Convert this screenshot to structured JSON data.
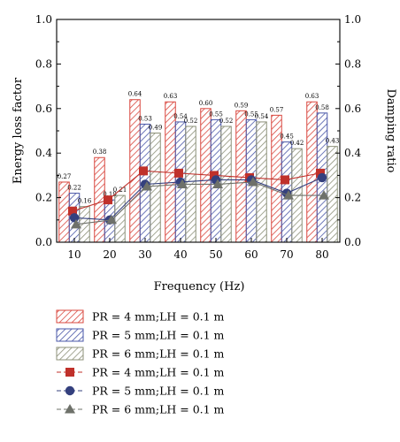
{
  "chart_data": {
    "type": "bar",
    "x": [
      10,
      20,
      30,
      40,
      50,
      60,
      70,
      80
    ],
    "xlabel": "Frequency (Hz)",
    "ylabel": "Energy loss factor",
    "y2label": "Damping ratio",
    "ylim": [
      0.0,
      1.0
    ],
    "y2lim": [
      0.0,
      1.0
    ],
    "yticks": [
      "0.0",
      "0.2",
      "0.4",
      "0.6",
      "0.8",
      "1.0"
    ],
    "y2ticks": [
      "0.0",
      "0.2",
      "0.4",
      "0.6",
      "0.8",
      "1.0"
    ],
    "legend_placement": "below",
    "grid": false,
    "bar_series": [
      {
        "name": "PR = 4 mm;LH = 0.1 m",
        "color": "#d9473e",
        "values": [
          0.27,
          0.38,
          0.64,
          0.63,
          0.6,
          0.59,
          0.57,
          0.63
        ],
        "labels": [
          "0.27",
          "0.38",
          "0.64",
          "0.63",
          "0.60",
          "0.59",
          "0.57",
          "0.63"
        ]
      },
      {
        "name": "PR = 5 mm;LH = 0.1 m",
        "color": "#4a57a8",
        "values": [
          0.22,
          0.19,
          0.53,
          0.54,
          0.55,
          0.55,
          0.45,
          0.58
        ],
        "labels": [
          "0.22",
          "0.19",
          "0.53",
          "0.54",
          "0.55",
          "0.55",
          "0.45",
          "0.58"
        ]
      },
      {
        "name": "PR = 6 mm;LH = 0.1 m",
        "color": "#8c9079",
        "values": [
          0.16,
          0.21,
          0.49,
          0.52,
          0.52,
          0.54,
          0.42,
          0.43
        ],
        "labels": [
          "0.16",
          "0.21",
          "0.49",
          "0.52",
          "0.52",
          "0.54",
          "0.42",
          "0.43"
        ]
      }
    ],
    "line_series": [
      {
        "name": "PR = 4 mm;LH = 0.1 m",
        "color": "#c0312b",
        "marker": "square",
        "values": [
          0.14,
          0.19,
          0.32,
          0.31,
          0.3,
          0.29,
          0.28,
          0.31
        ]
      },
      {
        "name": "PR = 5 mm;LH = 0.1 m",
        "color": "#34407e",
        "marker": "circle",
        "values": [
          0.11,
          0.1,
          0.26,
          0.27,
          0.28,
          0.28,
          0.22,
          0.29
        ]
      },
      {
        "name": "PR = 6 mm;LH = 0.1 m",
        "color": "#6e716a",
        "marker": "triangle",
        "values": [
          0.08,
          0.1,
          0.25,
          0.26,
          0.26,
          0.27,
          0.21,
          0.21
        ]
      }
    ]
  }
}
